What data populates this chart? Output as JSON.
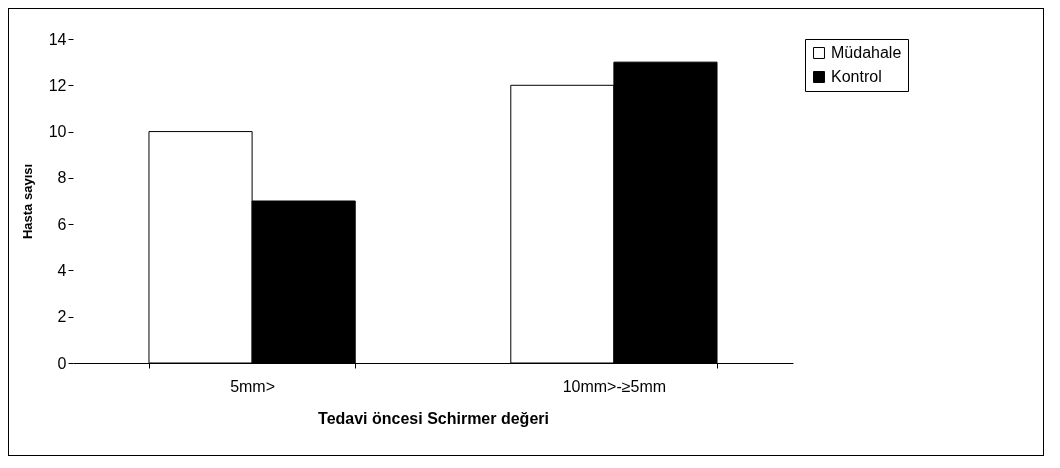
{
  "chart_data": {
    "type": "bar",
    "xlabel": "Tedavi öncesi Schirmer değeri",
    "ylabel": "Hasta sayısı",
    "categories": [
      "5mm>",
      "10mm>-≥5mm"
    ],
    "series": [
      {
        "name": "Müdahale",
        "color": "#ffffff",
        "values": [
          10,
          12
        ]
      },
      {
        "name": "Kontrol",
        "color": "#000000",
        "values": [
          7,
          13
        ]
      }
    ],
    "ylim": [
      0,
      14
    ],
    "yticks": [
      0,
      2,
      4,
      6,
      8,
      10,
      12,
      14
    ],
    "grid": false,
    "legend": "right"
  }
}
